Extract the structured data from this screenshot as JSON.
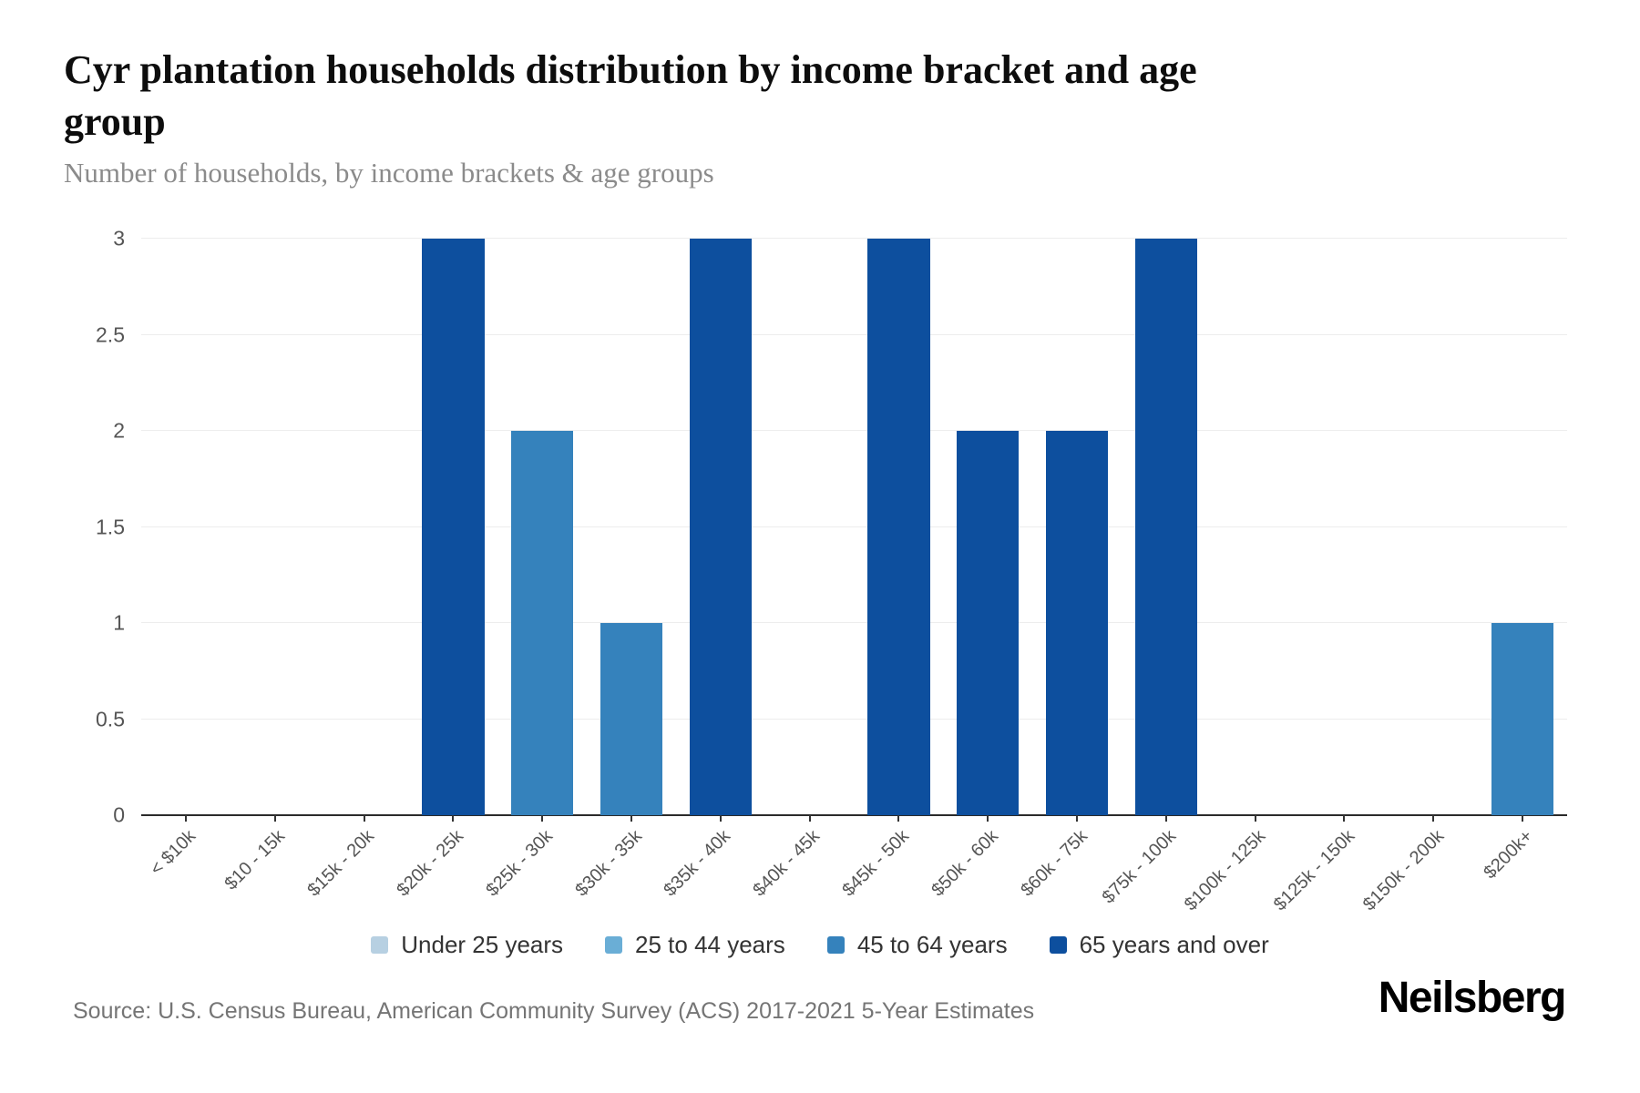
{
  "chart_data": {
    "type": "bar",
    "title": "Cyr plantation households distribution by income bracket and age group",
    "subtitle": "Number of households, by income brackets & age groups",
    "categories": [
      "< $10k",
      "$10 - 15k",
      "$15k - 20k",
      "$20k - 25k",
      "$25k - 30k",
      "$30k - 35k",
      "$35k - 40k",
      "$40k - 45k",
      "$45k - 50k",
      "$50k - 60k",
      "$60k - 75k",
      "$75k - 100k",
      "$100k - 125k",
      "$125k - 150k",
      "$150k - 200k",
      "$200k+"
    ],
    "series": [
      {
        "name": "Under 25 years",
        "color": "#b7d0e2",
        "values": [
          0,
          0,
          0,
          0,
          0,
          0,
          0,
          0,
          0,
          0,
          0,
          0,
          0,
          0,
          0,
          0
        ]
      },
      {
        "name": "25 to 44 years",
        "color": "#6aaed6",
        "values": [
          0,
          0,
          0,
          0,
          0,
          0,
          0,
          0,
          0,
          0,
          0,
          0,
          0,
          0,
          0,
          0
        ]
      },
      {
        "name": "45 to 64 years",
        "color": "#3582bc",
        "values": [
          0,
          0,
          0,
          0,
          2,
          1,
          0,
          0,
          0,
          0,
          0,
          0,
          0,
          0,
          0,
          1
        ]
      },
      {
        "name": "65 years and over",
        "color": "#0d4f9e",
        "values": [
          0,
          0,
          0,
          3,
          0,
          0,
          3,
          0,
          3,
          2,
          2,
          3,
          0,
          0,
          0,
          0
        ]
      }
    ],
    "xlabel": "",
    "ylabel": "",
    "ylim": [
      0,
      3
    ],
    "yticks": [
      0,
      0.5,
      1,
      1.5,
      2,
      2.5,
      3
    ],
    "ytick_labels": [
      "0",
      "0.5",
      "1",
      "1.5",
      "2",
      "2.5",
      "3"
    ],
    "grid": true,
    "legend_position": "bottom",
    "axis_color": "#2b2b2b",
    "gridline_color": "#ededed"
  },
  "footer": {
    "source": "Source: U.S. Census Bureau, American Community Survey (ACS) 2017-2021 5-Year Estimates",
    "brand": "Neilsberg"
  }
}
